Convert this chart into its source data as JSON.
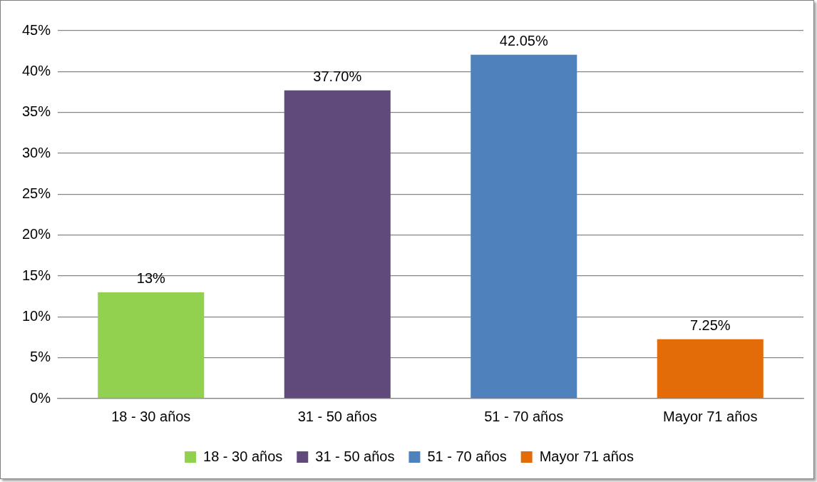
{
  "chart_data": {
    "type": "bar",
    "categories": [
      "18 - 30 años",
      "31 - 50 años",
      "51 - 70 años",
      "Mayor 71 años"
    ],
    "series": [
      {
        "name": "18 - 30 años",
        "color": "#92d050",
        "values": [
          13,
          null,
          null,
          null
        ],
        "value_labels": [
          "13%",
          null,
          null,
          null
        ]
      },
      {
        "name": "31 - 50 años",
        "color": "#604a7b",
        "values": [
          null,
          37.7,
          null,
          null
        ],
        "value_labels": [
          null,
          "37.70%",
          null,
          null
        ]
      },
      {
        "name": "51 - 70 años",
        "color": "#4f81bd",
        "values": [
          null,
          null,
          42.05,
          null
        ],
        "value_labels": [
          null,
          null,
          "42.05%",
          null
        ]
      },
      {
        "name": "Mayor 71 años",
        "color": "#e36c09",
        "values": [
          null,
          null,
          null,
          7.25
        ],
        "value_labels": [
          null,
          null,
          null,
          "7.25%"
        ]
      }
    ],
    "ylim": [
      0,
      45
    ],
    "yticks": [
      {
        "value": 0,
        "label": "0%"
      },
      {
        "value": 5,
        "label": "5%"
      },
      {
        "value": 10,
        "label": "10%"
      },
      {
        "value": 15,
        "label": "15%"
      },
      {
        "value": 20,
        "label": "20%"
      },
      {
        "value": 25,
        "label": "25%"
      },
      {
        "value": 30,
        "label": "30%"
      },
      {
        "value": 35,
        "label": "35%"
      },
      {
        "value": 40,
        "label": "40%"
      },
      {
        "value": 45,
        "label": "45%"
      }
    ],
    "grid": "y",
    "legend": "bottom"
  }
}
